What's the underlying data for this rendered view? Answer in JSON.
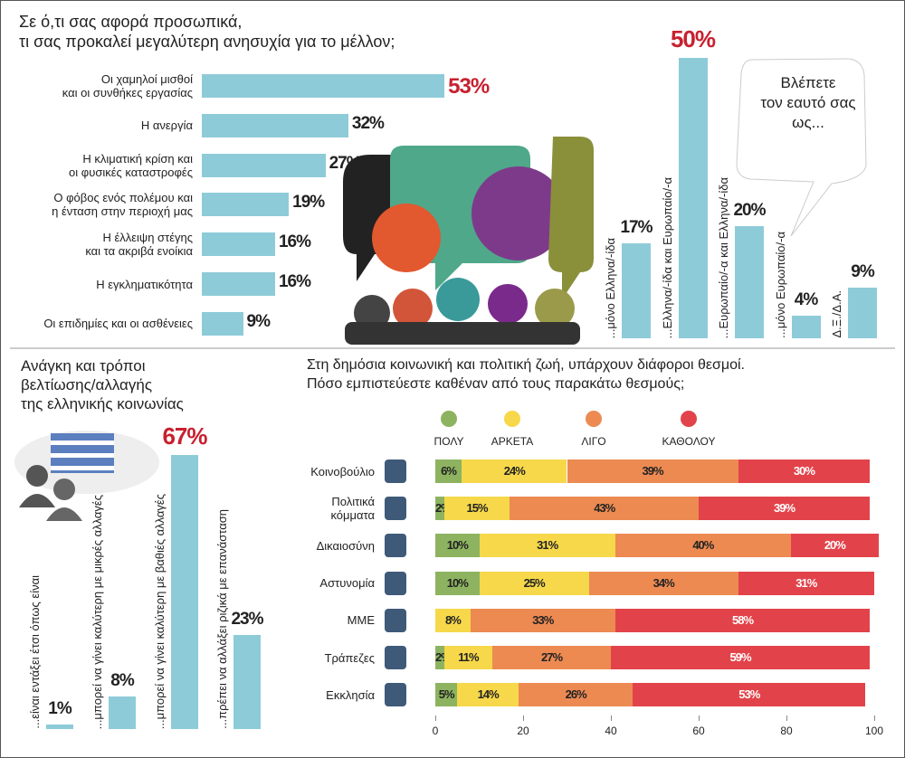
{
  "chart_data": [
    {
      "type": "hbar",
      "title": "Σε ό,τι σας αφορά προσωπικά,\nτι σας προκαλεί μεγαλύτερη ανησυχία για το μέλλον;",
      "categories": [
        "Οι χαμηλοί μισθοί\nκαι οι συνθήκες εργασίας",
        "Η ανεργία",
        "Η κλιματική κρίση και\nοι φυσικές καταστροφές",
        "Ο φόβος ενός πολέμου και\nη ένταση στην περιοχή μας",
        "Η έλλειψη στέγης\nκαι τα ακριβά ενοίκια",
        "Η εγκληματικότητα",
        "Οι επιδημίες και οι ασθένειες"
      ],
      "values": [
        53,
        32,
        27,
        19,
        16,
        16,
        9
      ],
      "value_labels": [
        "53%",
        "32%",
        "27%",
        "19%",
        "16%",
        "16%",
        "9%"
      ],
      "color": "#8ecbd8",
      "highlight_color": "#c8202f"
    },
    {
      "type": "vbar",
      "title": "Βλέπετε\nτον εαυτό σας\nως...",
      "categories": [
        "...μόνο Ελληνα/-ίδα",
        "...Ελληνα/-ίδα και Ευρωπαίο/-α",
        "...Ευρωπαίο/-α και Ελληνα/-ίδα",
        "...μόνο Ευρωπαίο/-α",
        "Δ.Ξ./Δ.Α."
      ],
      "values": [
        17,
        50,
        20,
        4,
        9
      ],
      "value_labels": [
        "17%",
        "50%",
        "20%",
        "4%",
        "9%"
      ],
      "color": "#8ecbd8",
      "highlight_color": "#c8202f"
    },
    {
      "type": "vbar",
      "title": "Ανάγκη και τρόποι\nβελτίωσης/αλλαγής\nτης ελληνικής κοινωνίας",
      "categories": [
        "...είναι εντάξει έτσι όπως είναι",
        "...μπορεί να γίνει καλύτερη με μικρές αλλαγές",
        "...μπορεί να γίνει καλύτερη με βαθιές αλλαγές",
        "...πρέπει να αλλάξει ριζικά με επανάσταση"
      ],
      "values": [
        1,
        8,
        67,
        23
      ],
      "value_labels": [
        "1%",
        "8%",
        "67%",
        "23%"
      ],
      "color": "#8ecbd8",
      "highlight_color": "#c8202f"
    },
    {
      "type": "stacked_hbar",
      "title": "Στη δημόσια κοινωνική και πολιτική ζωή, υπάρχουν διάφοροι θεσμοί.\nΠόσο εμπιστεύεστε καθέναν από τους παρακάτω θεσμούς;",
      "categories": [
        "Κοινοβούλιο",
        "Πολιτικά\nκόμματα",
        "Δικαιοσύνη",
        "Αστυνομία",
        "ΜΜΕ",
        "Τράπεζες",
        "Εκκλησία"
      ],
      "series": [
        {
          "name": "ΠΟΛΥ",
          "color": "#8db360",
          "values": [
            6,
            2,
            10,
            10,
            0,
            2,
            5
          ],
          "value_labels": [
            "6%",
            "2%",
            "10%",
            "10%",
            "0%",
            "2%",
            "5%"
          ]
        },
        {
          "name": "ΑΡΚΕΤΑ",
          "color": "#f6d84a",
          "values": [
            24,
            15,
            31,
            25,
            8,
            11,
            14
          ],
          "value_labels": [
            "24%",
            "15%",
            "31%",
            "25%",
            "8%",
            "11%",
            "14%"
          ]
        },
        {
          "name": "ΛΙΓΟ",
          "color": "#ec8a52",
          "values": [
            39,
            43,
            40,
            34,
            33,
            27,
            26
          ],
          "value_labels": [
            "39%",
            "43%",
            "40%",
            "34%",
            "33%",
            "27%",
            "26%"
          ]
        },
        {
          "name": "ΚΑΘΟΛΟΥ",
          "color": "#e2434a",
          "values": [
            30,
            39,
            20,
            31,
            58,
            59,
            53
          ],
          "value_labels": [
            "30%",
            "39%",
            "20%",
            "31%",
            "58%",
            "59%",
            "53%"
          ]
        }
      ],
      "xlim": [
        0,
        100
      ],
      "xticks": [
        0,
        20,
        40,
        60,
        80,
        100
      ],
      "legend": "top"
    }
  ]
}
